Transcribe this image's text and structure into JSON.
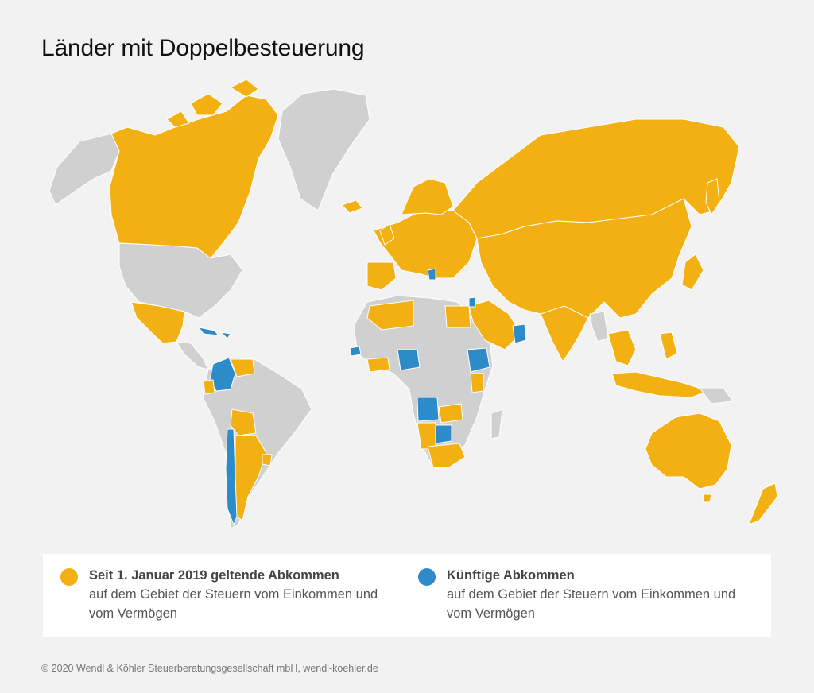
{
  "title": "Länder mit Doppelbesteuerung",
  "colors": {
    "existing": "#f2b012",
    "future": "#2e8bc9",
    "no_agreement": "#d0d0d0",
    "background": "#f2f2f2"
  },
  "legend": {
    "existing": {
      "heading": "Seit 1. Januar 2019 geltende Abkommen",
      "description": "auf dem Gebiet der Steuern vom Einkommen und vom Vermögen"
    },
    "future": {
      "heading": "Künftige Abkommen",
      "description": "auf dem Gebiet der Steuern vom Einkommen und vom Vermögen"
    }
  },
  "footer": "© 2020 Wendl & Köhler Steuerberatungsgesellschaft mbH, wendl-koehler.de"
}
